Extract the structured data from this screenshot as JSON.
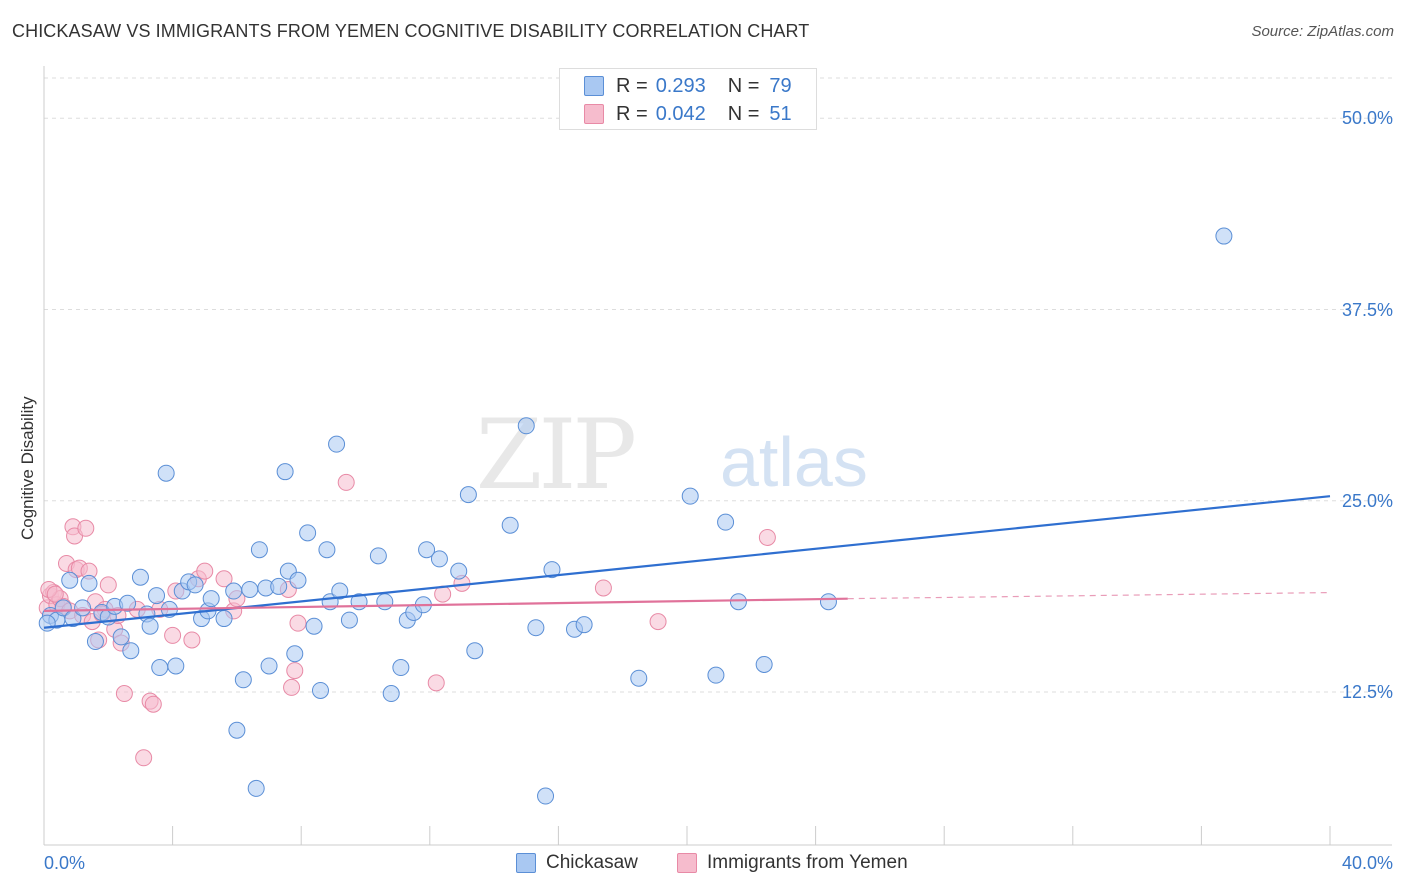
{
  "title": "CHICKASAW VS IMMIGRANTS FROM YEMEN COGNITIVE DISABILITY CORRELATION CHART",
  "source": "Source: ZipAtlas.com",
  "watermark": {
    "zip": "ZIP",
    "atlas": "atlas"
  },
  "colors": {
    "blue_fill": "#a9c8f2",
    "blue_stroke": "#5b8fd6",
    "blue_line": "#2f6fd0",
    "pink_fill": "#f6bccd",
    "pink_stroke": "#e88aa6",
    "pink_line": "#e0729a",
    "tick_text": "#3a78c9",
    "grid": "#dddddd"
  },
  "legend": {
    "rows": [
      {
        "r_label": "R =",
        "r_value": "0.293",
        "n_label": "N =",
        "n_value": "79"
      },
      {
        "r_label": "R =",
        "r_value": "0.042",
        "n_label": "N =",
        "n_value": "51"
      }
    ]
  },
  "bottom_legend": [
    "Chickasaw",
    "Immigrants from Yemen"
  ],
  "chart_data": {
    "type": "scatter",
    "xlabel": "",
    "ylabel": "Cognitive Disability",
    "xlim": [
      0,
      40
    ],
    "ylim": [
      2.5,
      52.5
    ],
    "x_tick_labels": [
      "0.0%",
      "40.0%"
    ],
    "y_ticks": [
      12.5,
      25.0,
      37.5,
      50.0
    ],
    "y_tick_labels": [
      "12.5%",
      "25.0%",
      "37.5%",
      "50.0%"
    ],
    "grid": true,
    "legend_position": "top-center",
    "series": [
      {
        "name": "Chickasaw",
        "trend": {
          "x": [
            0,
            40
          ],
          "y": [
            16.7,
            25.3
          ]
        },
        "points": [
          [
            0.2,
            17.5
          ],
          [
            0.4,
            17.2
          ],
          [
            0.6,
            18.0
          ],
          [
            0.8,
            19.8
          ],
          [
            0.9,
            17.3
          ],
          [
            1.2,
            18.0
          ],
          [
            1.4,
            19.6
          ],
          [
            1.6,
            15.8
          ],
          [
            1.8,
            17.7
          ],
          [
            2.0,
            17.4
          ],
          [
            2.2,
            18.1
          ],
          [
            2.4,
            16.1
          ],
          [
            2.6,
            18.3
          ],
          [
            2.7,
            15.2
          ],
          [
            3.0,
            20.0
          ],
          [
            3.2,
            17.6
          ],
          [
            3.3,
            16.8
          ],
          [
            3.5,
            18.8
          ],
          [
            3.6,
            14.1
          ],
          [
            3.8,
            26.8
          ],
          [
            3.9,
            17.9
          ],
          [
            4.1,
            14.2
          ],
          [
            4.3,
            19.1
          ],
          [
            4.5,
            19.7
          ],
          [
            4.7,
            19.5
          ],
          [
            4.9,
            17.3
          ],
          [
            5.1,
            17.8
          ],
          [
            5.2,
            18.6
          ],
          [
            5.6,
            17.3
          ],
          [
            5.9,
            19.1
          ],
          [
            6.0,
            10.0
          ],
          [
            6.2,
            13.3
          ],
          [
            6.4,
            19.2
          ],
          [
            6.6,
            6.2
          ],
          [
            6.7,
            21.8
          ],
          [
            6.9,
            19.3
          ],
          [
            7.0,
            14.2
          ],
          [
            7.3,
            19.4
          ],
          [
            7.5,
            26.9
          ],
          [
            7.6,
            20.4
          ],
          [
            7.8,
            15.0
          ],
          [
            7.9,
            19.8
          ],
          [
            8.2,
            22.9
          ],
          [
            8.4,
            16.8
          ],
          [
            8.6,
            12.6
          ],
          [
            8.8,
            21.8
          ],
          [
            8.9,
            18.4
          ],
          [
            9.1,
            28.7
          ],
          [
            9.2,
            19.1
          ],
          [
            9.5,
            17.2
          ],
          [
            9.8,
            18.4
          ],
          [
            10.4,
            21.4
          ],
          [
            10.6,
            18.4
          ],
          [
            10.8,
            12.4
          ],
          [
            11.1,
            14.1
          ],
          [
            11.3,
            17.2
          ],
          [
            11.5,
            17.7
          ],
          [
            11.8,
            18.2
          ],
          [
            11.9,
            21.8
          ],
          [
            12.3,
            21.2
          ],
          [
            12.9,
            20.4
          ],
          [
            13.2,
            25.4
          ],
          [
            13.4,
            15.2
          ],
          [
            14.5,
            23.4
          ],
          [
            15.0,
            29.9
          ],
          [
            15.3,
            16.7
          ],
          [
            15.6,
            5.7
          ],
          [
            15.8,
            20.5
          ],
          [
            16.5,
            16.6
          ],
          [
            16.8,
            16.9
          ],
          [
            18.5,
            13.4
          ],
          [
            20.1,
            25.3
          ],
          [
            20.9,
            13.6
          ],
          [
            21.2,
            23.6
          ],
          [
            21.6,
            18.4
          ],
          [
            22.4,
            14.3
          ],
          [
            24.4,
            18.4
          ],
          [
            36.7,
            42.3
          ],
          [
            0.1,
            17.0
          ]
        ]
      },
      {
        "name": "Immigrants from Yemen",
        "trend": {
          "x": [
            0,
            25
          ],
          "y": [
            17.8,
            18.6
          ]
        },
        "trend_dashed": {
          "x": [
            25,
            40
          ],
          "y": [
            18.6,
            19.0
          ]
        },
        "points": [
          [
            0.1,
            18.0
          ],
          [
            0.2,
            18.8
          ],
          [
            0.3,
            19.0
          ],
          [
            0.4,
            18.2
          ],
          [
            0.5,
            18.6
          ],
          [
            0.6,
            18.1
          ],
          [
            0.7,
            20.9
          ],
          [
            0.8,
            17.8
          ],
          [
            0.9,
            23.3
          ],
          [
            0.95,
            22.7
          ],
          [
            1.0,
            20.5
          ],
          [
            1.1,
            20.6
          ],
          [
            1.2,
            17.5
          ],
          [
            1.3,
            23.2
          ],
          [
            1.4,
            20.4
          ],
          [
            1.5,
            17.1
          ],
          [
            1.6,
            18.4
          ],
          [
            1.7,
            15.9
          ],
          [
            1.9,
            17.9
          ],
          [
            2.0,
            19.5
          ],
          [
            2.2,
            16.6
          ],
          [
            2.3,
            17.5
          ],
          [
            2.4,
            15.7
          ],
          [
            2.5,
            12.4
          ],
          [
            2.9,
            17.9
          ],
          [
            3.1,
            8.2
          ],
          [
            3.3,
            11.9
          ],
          [
            3.4,
            11.7
          ],
          [
            3.6,
            17.9
          ],
          [
            4.0,
            16.2
          ],
          [
            4.1,
            19.1
          ],
          [
            4.6,
            15.9
          ],
          [
            4.8,
            19.9
          ],
          [
            5.0,
            20.4
          ],
          [
            5.6,
            19.9
          ],
          [
            5.9,
            17.8
          ],
          [
            6.0,
            18.6
          ],
          [
            7.6,
            19.2
          ],
          [
            7.7,
            12.8
          ],
          [
            7.8,
            13.9
          ],
          [
            7.9,
            17.0
          ],
          [
            9.4,
            26.2
          ],
          [
            12.2,
            13.1
          ],
          [
            12.4,
            18.9
          ],
          [
            13.0,
            19.6
          ],
          [
            17.4,
            19.3
          ],
          [
            19.1,
            17.1
          ],
          [
            22.5,
            22.6
          ],
          [
            0.15,
            19.2
          ],
          [
            0.35,
            18.9
          ],
          [
            1.8,
            17.6
          ]
        ]
      }
    ]
  }
}
